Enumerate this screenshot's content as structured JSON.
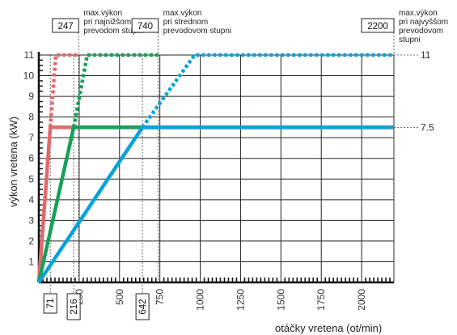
{
  "chart_data": {
    "type": "line",
    "xlabel": "otáčky vretena (ot/min)",
    "ylabel": "výkon vretena  (kW)",
    "xlim": [
      0,
      2200
    ],
    "ylim": [
      0,
      11
    ],
    "x_ticks": [
      250,
      500,
      750,
      1000,
      1250,
      1500,
      1750,
      2000
    ],
    "y_ticks": [
      1,
      2,
      3,
      4,
      5,
      6,
      7,
      8,
      9,
      10,
      11
    ],
    "grid": true,
    "series": [
      {
        "color": "#e06a6a",
        "solid": [
          [
            0,
            0
          ],
          [
            71,
            7.5
          ],
          [
            2200,
            7.5
          ]
        ],
        "dotted": [
          [
            71,
            7.5
          ],
          [
            105,
            11
          ],
          [
            247,
            11
          ]
        ]
      },
      {
        "color": "#16a05a",
        "solid": [
          [
            0,
            0
          ],
          [
            216,
            7.5
          ],
          [
            740,
            7.5
          ]
        ],
        "dotted": [
          [
            216,
            7.5
          ],
          [
            300,
            11
          ],
          [
            740,
            11
          ]
        ]
      },
      {
        "color": "#0aa2d8",
        "solid": [
          [
            0,
            0
          ],
          [
            642,
            7.5
          ],
          [
            2200,
            7.5
          ]
        ],
        "dotted": [
          [
            642,
            7.5
          ],
          [
            965,
            11
          ],
          [
            2200,
            11
          ]
        ]
      }
    ],
    "right_labels": [
      {
        "y": 11,
        "text": "11"
      },
      {
        "y": 7.5,
        "text": "7.5"
      }
    ],
    "top_markers": [
      {
        "x": 247,
        "value": "247",
        "note": [
          "max.výkon",
          "pri najnižšom",
          "prevodom stupni"
        ]
      },
      {
        "x": 740,
        "value": "740",
        "note": [
          "max.výkon",
          "pri strednom",
          "prevodovom stupni"
        ]
      },
      {
        "x": 2200,
        "value": "2200",
        "note": [
          "max.výkon",
          "pri najvyššom",
          "prevodovom",
          "stupni"
        ]
      }
    ],
    "bottom_markers": [
      {
        "x": 71,
        "value": "71"
      },
      {
        "x": 216,
        "value": "216"
      },
      {
        "x": 642,
        "value": "642"
      }
    ]
  }
}
